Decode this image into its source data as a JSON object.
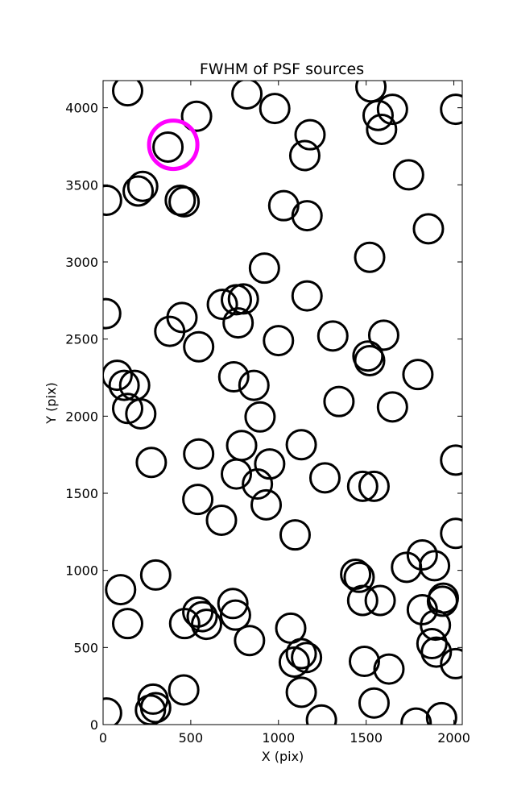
{
  "chart_data": {
    "type": "scatter",
    "title": "FWHM of PSF sources",
    "xlabel": "X (pix)",
    "ylabel": "Y (pix)",
    "xlim": [
      0,
      2048
    ],
    "ylim": [
      0,
      4176
    ],
    "xticks": [
      0,
      500,
      1000,
      1500,
      2000
    ],
    "yticks": [
      0,
      500,
      1000,
      1500,
      2000,
      2500,
      3000,
      3500,
      4000
    ],
    "grid": false,
    "marker": "open-circle",
    "series": [
      {
        "color": "#000000",
        "points": [
          [
            140,
            4110
          ],
          [
            533,
            3945
          ],
          [
            820,
            4090
          ],
          [
            979,
            3995
          ],
          [
            1527,
            4135
          ],
          [
            1568,
            3950
          ],
          [
            1650,
            3990
          ],
          [
            1588,
            3860
          ],
          [
            2010,
            3990
          ],
          [
            1180,
            3825
          ],
          [
            1150,
            3690
          ],
          [
            370,
            3745
          ],
          [
            226,
            3490
          ],
          [
            200,
            3460
          ],
          [
            440,
            3400
          ],
          [
            462,
            3390
          ],
          [
            20,
            3400
          ],
          [
            1030,
            3365
          ],
          [
            1163,
            3300
          ],
          [
            1742,
            3565
          ],
          [
            1855,
            3215
          ],
          [
            920,
            2960
          ],
          [
            1520,
            3030
          ],
          [
            15,
            2665
          ],
          [
            1163,
            2780
          ],
          [
            680,
            2725
          ],
          [
            760,
            2755
          ],
          [
            800,
            2760
          ],
          [
            770,
            2605
          ],
          [
            450,
            2640
          ],
          [
            380,
            2550
          ],
          [
            545,
            2450
          ],
          [
            1000,
            2490
          ],
          [
            1310,
            2520
          ],
          [
            1600,
            2525
          ],
          [
            1510,
            2390
          ],
          [
            1520,
            2360
          ],
          [
            80,
            2265
          ],
          [
            120,
            2200
          ],
          [
            180,
            2200
          ],
          [
            745,
            2255
          ],
          [
            860,
            2200
          ],
          [
            1345,
            2095
          ],
          [
            1650,
            2060
          ],
          [
            1795,
            2270
          ],
          [
            140,
            2050
          ],
          [
            215,
            2015
          ],
          [
            895,
            1995
          ],
          [
            790,
            1810
          ],
          [
            1130,
            1815
          ],
          [
            545,
            1755
          ],
          [
            275,
            1700
          ],
          [
            760,
            1625
          ],
          [
            950,
            1690
          ],
          [
            880,
            1560
          ],
          [
            930,
            1425
          ],
          [
            540,
            1460
          ],
          [
            675,
            1325
          ],
          [
            1265,
            1600
          ],
          [
            1480,
            1545
          ],
          [
            1545,
            1545
          ],
          [
            1095,
            1230
          ],
          [
            2010,
            1715
          ],
          [
            2010,
            1240
          ],
          [
            300,
            970
          ],
          [
            100,
            875
          ],
          [
            140,
            655
          ],
          [
            540,
            730
          ],
          [
            565,
            700
          ],
          [
            465,
            655
          ],
          [
            590,
            650
          ],
          [
            740,
            785
          ],
          [
            755,
            710
          ],
          [
            835,
            545
          ],
          [
            1070,
            625
          ],
          [
            1090,
            405
          ],
          [
            1130,
            460
          ],
          [
            1160,
            435
          ],
          [
            1440,
            975
          ],
          [
            1460,
            955
          ],
          [
            1480,
            805
          ],
          [
            1580,
            805
          ],
          [
            1730,
            1020
          ],
          [
            1820,
            1100
          ],
          [
            1890,
            1030
          ],
          [
            1820,
            745
          ],
          [
            1940,
            820
          ],
          [
            1935,
            800
          ],
          [
            1895,
            645
          ],
          [
            1875,
            525
          ],
          [
            1900,
            470
          ],
          [
            2010,
            395
          ],
          [
            1490,
            410
          ],
          [
            1630,
            360
          ],
          [
            1545,
            140
          ],
          [
            1130,
            210
          ],
          [
            1245,
            30
          ],
          [
            1785,
            10
          ],
          [
            1930,
            45
          ],
          [
            285,
            165
          ],
          [
            300,
            110
          ],
          [
            270,
            95
          ],
          [
            460,
            225
          ],
          [
            20,
            75
          ]
        ]
      },
      {
        "color": "#ff00ff",
        "points": [
          [
            400,
            3760
          ]
        ]
      }
    ]
  }
}
